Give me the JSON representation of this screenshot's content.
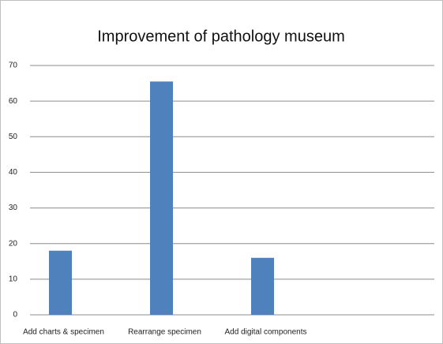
{
  "chart_data": {
    "type": "bar",
    "title": "Improvement  of pathology museum",
    "categories": [
      "Add charts & specimen",
      "Rearrange specimen",
      "Add digital components",
      null
    ],
    "values": [
      18,
      65.5,
      16,
      null
    ],
    "color": "#4f81bd",
    "ylim": [
      0,
      70
    ],
    "yticks": [
      0,
      10,
      20,
      30,
      40,
      50,
      60,
      70
    ],
    "grid": true
  }
}
